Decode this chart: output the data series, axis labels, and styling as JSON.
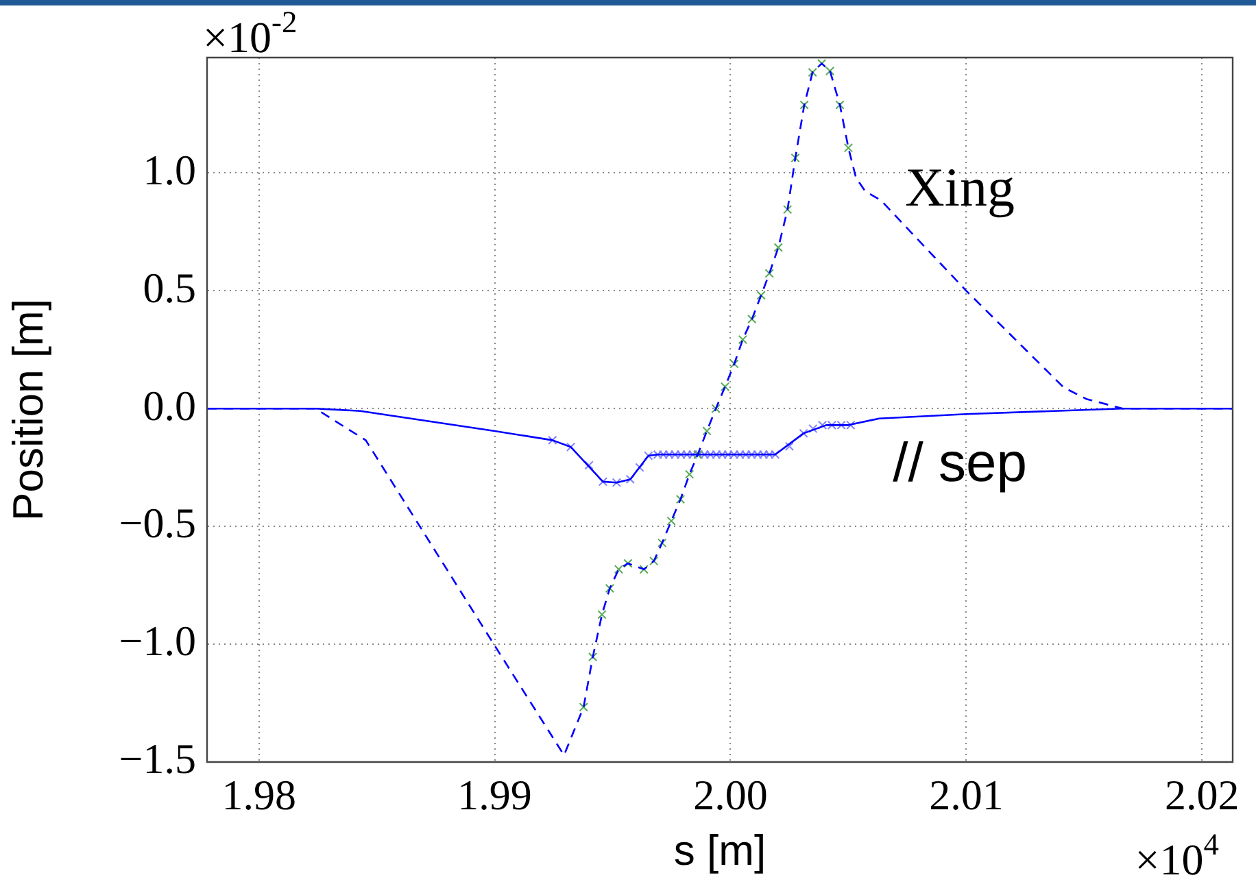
{
  "chart_data": {
    "type": "line",
    "xlabel": "s [m]",
    "ylabel": "Position [m]",
    "xlim": [
      1.9778,
      2.0213
    ],
    "ylim": [
      -1.5,
      1.49
    ],
    "xticks": [
      1.98,
      1.99,
      {
        "value": 2,
        "label": "2.00"
      },
      2.01,
      2.02
    ],
    "yticks": [
      {
        "value": -1.5,
        "label": "−1.5"
      },
      {
        "value": -1,
        "label": "−1.0"
      },
      {
        "value": -0.5,
        "label": "−0.5"
      },
      {
        "value": 0,
        "label": "0.0"
      },
      {
        "value": 0.5,
        "label": "0.5"
      },
      {
        "value": 1,
        "label": "1.0"
      }
    ],
    "grid": true,
    "annotations": [
      "×10$^{-2}$",
      "×10$^{4}$",
      "Xing",
      "// sep"
    ],
    "series": [
      {
        "line_style": "dashed",
        "marker": "none",
        "color": "#0000ff",
        "x": [
          1.9778,
          1.9824,
          1.98453,
          1.99,
          1.99294,
          1.99377,
          1.99416,
          1.99455,
          1.99488,
          1.99526,
          1.99565,
          1.99633,
          1.99675,
          1.9971,
          1.99749,
          1.99788,
          1.99826,
          1.99861,
          1.999,
          1.99938,
          1.99977,
          2.00016,
          2.00052,
          2.00091,
          2.0013,
          2.00165,
          2.00203,
          2.00242,
          2.00275,
          2.00313,
          2.00348,
          2.00387,
          2.00422,
          2.00464,
          2.005,
          2.00532,
          2.00571,
          2.00638,
          2.01,
          2.01413,
          2.01509,
          2.01664,
          2.0213
        ],
        "values": [
          0,
          0,
          -0.134,
          -1.006,
          -1.471,
          -1.267,
          -1.054,
          -0.874,
          -0.763,
          -0.682,
          -0.657,
          -0.682,
          -0.647,
          -0.57,
          -0.477,
          -0.385,
          -0.279,
          -0.195,
          -0.095,
          0,
          0.093,
          0.19,
          0.293,
          0.38,
          0.481,
          0.574,
          0.684,
          0.845,
          1.064,
          1.289,
          1.427,
          1.465,
          1.433,
          1.289,
          1.107,
          0.981,
          0.923,
          0.884,
          0.5,
          0.09,
          0.041,
          0,
          0
        ]
      },
      {
        "line_style": "solid",
        "marker": "none",
        "color": "#0000ff",
        "x": [
          1.9778,
          1.9824,
          1.9843,
          1.99,
          1.99245,
          1.99323,
          1.99459,
          1.99517,
          1.99575,
          1.99652,
          1.99691,
          2.0019,
          2.0031,
          2.00406,
          2.005,
          2.0063,
          2.01,
          2.0166,
          2.0213
        ],
        "values": [
          0,
          0,
          -0.01,
          -0.095,
          -0.134,
          -0.163,
          -0.31,
          -0.314,
          -0.3,
          -0.2,
          -0.195,
          -0.195,
          -0.105,
          -0.07,
          -0.07,
          -0.042,
          -0.023,
          0,
          0
        ]
      },
      {
        "type": "scatter",
        "marker": "cross",
        "color": "#55aa55",
        "x": [
          1.99377,
          1.99416,
          1.99455,
          1.99488,
          1.99526,
          1.99565,
          1.99633,
          1.99675,
          1.9971,
          1.99749,
          1.99788,
          1.99826,
          1.99861,
          1.999,
          1.99938,
          1.99977,
          2.00016,
          2.00052,
          2.00091,
          2.0013,
          2.00165,
          2.00203,
          2.00242,
          2.00275,
          2.00313,
          2.00348,
          2.00387,
          2.00422,
          2.00464,
          2.005
        ],
        "values": [
          -1.267,
          -1.054,
          -0.874,
          -0.763,
          -0.682,
          -0.657,
          -0.682,
          -0.647,
          -0.57,
          -0.477,
          -0.385,
          -0.279,
          -0.195,
          -0.095,
          0,
          0.093,
          0.19,
          0.293,
          0.38,
          0.481,
          0.574,
          0.684,
          0.845,
          1.064,
          1.289,
          1.427,
          1.465,
          1.433,
          1.289,
          1.107
        ]
      },
      {
        "type": "scatter",
        "marker": "cross",
        "color": "#8080ff",
        "x": [
          1.99245,
          1.99323,
          1.994,
          1.99459,
          1.99517,
          1.99575,
          1.99615,
          1.99652,
          1.99691,
          1.99715,
          1.9974,
          1.99765,
          1.9979,
          1.99815,
          1.9984,
          1.99865,
          1.9989,
          1.99915,
          1.9994,
          1.99965,
          1.9999,
          2.00015,
          2.0004,
          2.00065,
          2.0009,
          2.00115,
          2.0014,
          2.00165,
          2.0019,
          2.0025,
          2.0031,
          2.0035,
          2.0039,
          2.0043,
          2.0047,
          2.0051
        ],
        "values": [
          -0.134,
          -0.163,
          -0.24,
          -0.31,
          -0.314,
          -0.3,
          -0.25,
          -0.2,
          -0.195,
          -0.195,
          -0.195,
          -0.195,
          -0.195,
          -0.195,
          -0.195,
          -0.195,
          -0.195,
          -0.195,
          -0.195,
          -0.195,
          -0.195,
          -0.195,
          -0.195,
          -0.195,
          -0.195,
          -0.195,
          -0.195,
          -0.195,
          -0.195,
          -0.16,
          -0.105,
          -0.085,
          -0.07,
          -0.07,
          -0.07,
          -0.07
        ]
      }
    ]
  }
}
